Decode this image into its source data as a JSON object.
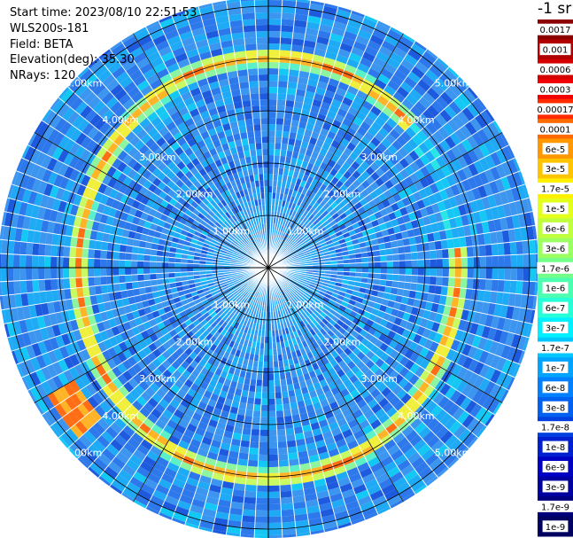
{
  "header": {
    "start_time": "Start time: 2023/08/10 22:51:53",
    "instrument": "WLS200s-181",
    "field": "Field: BETA",
    "elevation": "Elevation(deg): 35.30",
    "nrays": "NRays: 120"
  },
  "colorbar": {
    "title": "-1 sr",
    "labels": [
      "0.0017",
      "0.001",
      "0.0006",
      "0.0003",
      "0.00017",
      "0.0001",
      "6e-5",
      "3e-5",
      "1.7e-5",
      "1e-5",
      "6e-6",
      "3e-6",
      "1.7e-6",
      "1e-6",
      "6e-7",
      "3e-7",
      "1.7e-7",
      "1e-7",
      "6e-8",
      "3e-8",
      "1.7e-8",
      "1e-8",
      "6e-9",
      "3e-9",
      "1.7e-9",
      "1e-9"
    ],
    "colors": [
      "#8b0000",
      "#b00000",
      "#d40000",
      "#f00000",
      "#ff2a00",
      "#ff6a00",
      "#ff9800",
      "#ffc400",
      "#fff000",
      "#e4ff1c",
      "#c0ff3e",
      "#9cff62",
      "#72ff8a",
      "#4cffb0",
      "#26ffd8",
      "#00f0ff",
      "#00c8ff",
      "#00a4ff",
      "#0080ff",
      "#0060f0",
      "#0040e0",
      "#0020d0",
      "#0000c4",
      "#0000a0",
      "#00007c",
      "#000060"
    ]
  },
  "chart_data": {
    "type": "ppi-polar",
    "field": "BETA",
    "nrays": 120,
    "units": "sr-1",
    "range_rings_km": [
      1,
      2,
      3,
      4,
      5
    ],
    "ring_labels": [
      "1.00km",
      "2.00km",
      "3.00km",
      "4.00km",
      "5.00km"
    ],
    "azimuth_spokes_deg": [
      0,
      30,
      60,
      90,
      120,
      150,
      180,
      210,
      240,
      270,
      300,
      330
    ],
    "features": [
      {
        "name": "aerosol layer ring",
        "range_km": 4.0,
        "value_approx": "1.7e-6 to 1e-5"
      },
      {
        "name": "background",
        "value_approx": "1e-8 to 1e-7"
      }
    ]
  }
}
